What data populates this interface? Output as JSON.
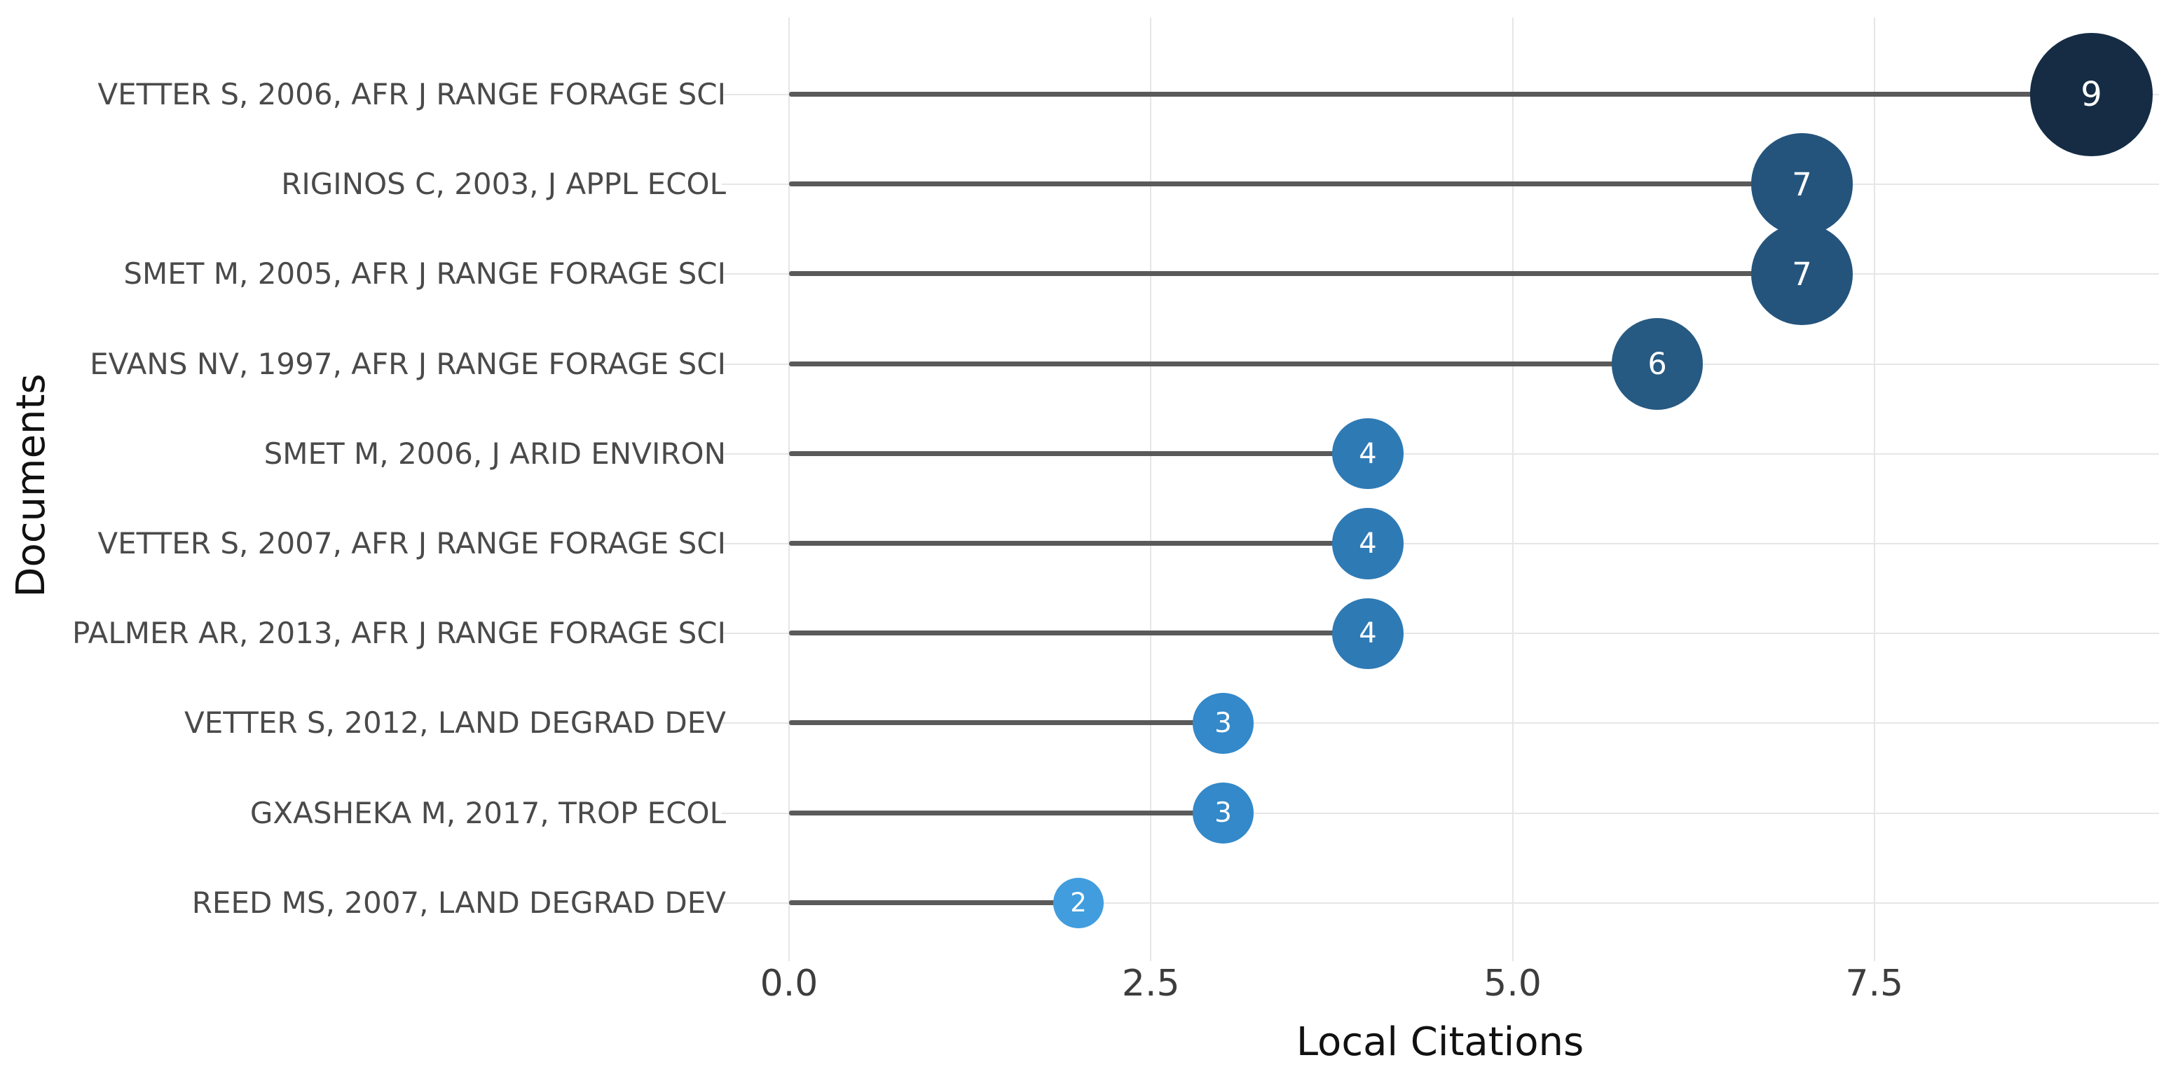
{
  "chart_data": {
    "type": "scatter",
    "variant": "lollipop",
    "title": "",
    "xlabel": "Local Citations",
    "ylabel": "Documents",
    "categories": [
      "VETTER S, 2006, AFR J RANGE FORAGE SCI",
      "RIGINOS C, 2003, J APPL ECOL",
      "SMET M, 2005, AFR J RANGE FORAGE SCI",
      "EVANS NV, 1997, AFR J RANGE FORAGE SCI",
      "SMET M, 2006, J ARID ENVIRON",
      "VETTER S, 2007, AFR J RANGE FORAGE SCI",
      "PALMER AR, 2013, AFR J RANGE FORAGE SCI",
      "VETTER S, 2012, LAND DEGRAD DEV",
      "GXASHEKA M, 2017, TROP ECOL",
      "REED MS, 2007, LAND DEGRAD DEV"
    ],
    "values": [
      9,
      7,
      7,
      6,
      4,
      4,
      4,
      3,
      3,
      2
    ],
    "value_labels": [
      "9",
      "7",
      "7",
      "6",
      "4",
      "4",
      "4",
      "3",
      "3",
      "2"
    ],
    "point_colors": [
      "#152c44",
      "#24547c",
      "#24547c",
      "#275a82",
      "#2e7ab5",
      "#2e7ab5",
      "#2e7ab5",
      "#3389c9",
      "#3389c9",
      "#419ddd"
    ],
    "x_ticks": [
      "0.0",
      "2.5",
      "5.0",
      "7.5"
    ],
    "x_tick_values": [
      0,
      2.5,
      5,
      7.5
    ],
    "xlim": [
      0,
      9.5
    ],
    "grid": true,
    "legend": false,
    "colors": {
      "stem": "#5a5a5a",
      "grid": "#e6e6e6",
      "axis_text": "#3d3d3d",
      "category_text": "#4a4a4a",
      "axis_title": "#111111",
      "point_value_text": "#ffffff",
      "background": "#ffffff"
    }
  }
}
